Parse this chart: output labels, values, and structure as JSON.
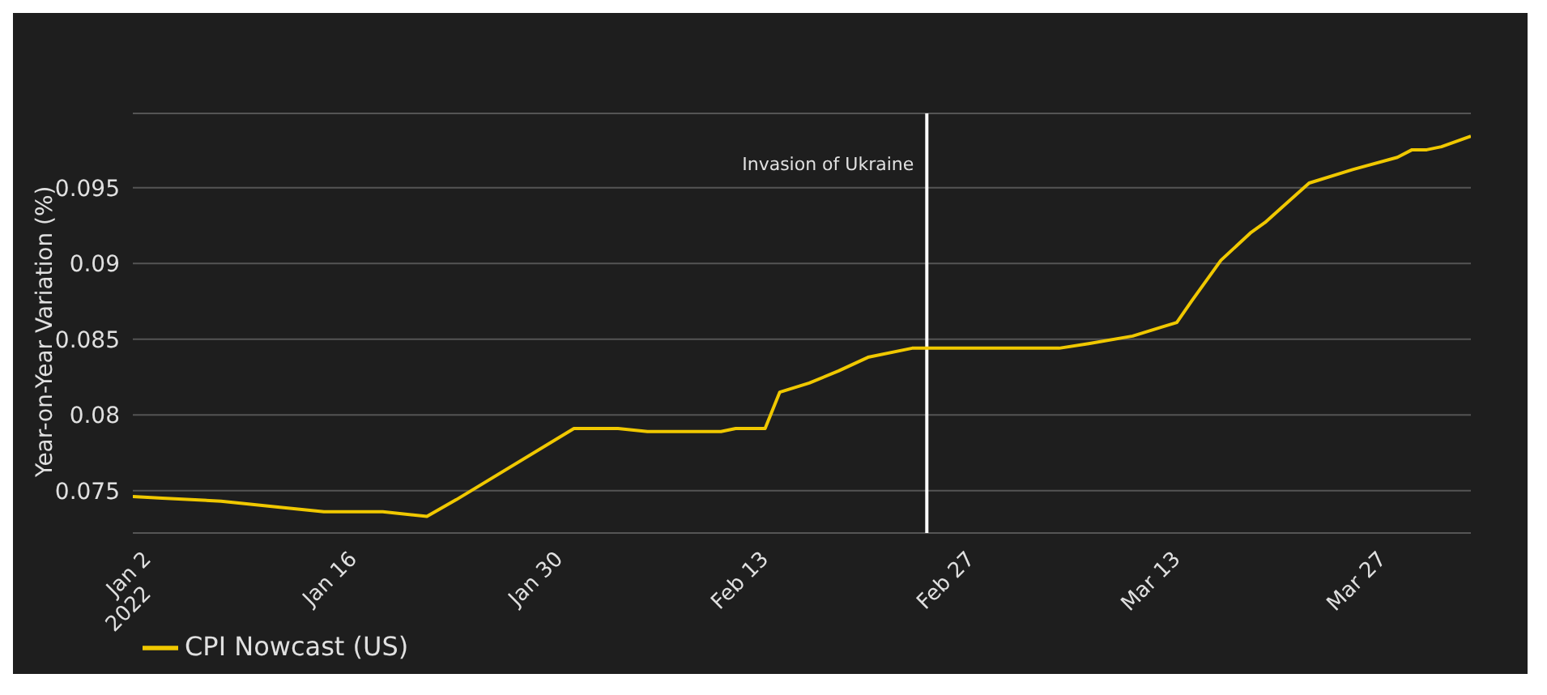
{
  "chart_data": {
    "type": "line",
    "ylabel": "Year-on-Year Variation (%)",
    "x": [
      "2022-01-01",
      "2022-01-03",
      "2022-01-07",
      "2022-01-11",
      "2022-01-14",
      "2022-01-18",
      "2022-01-21",
      "2022-01-23",
      "2022-01-31",
      "2022-02-03",
      "2022-02-05",
      "2022-02-10",
      "2022-02-11",
      "2022-02-13",
      "2022-02-14",
      "2022-02-16",
      "2022-02-18",
      "2022-02-20",
      "2022-02-23",
      "2022-03-05",
      "2022-03-07",
      "2022-03-10",
      "2022-03-12",
      "2022-03-13",
      "2022-03-14",
      "2022-03-16",
      "2022-03-18",
      "2022-03-19",
      "2022-03-22",
      "2022-03-25",
      "2022-03-28",
      "2022-03-29",
      "2022-03-30",
      "2022-03-31",
      "2022-04-02"
    ],
    "series": [
      {
        "name": "CPI Nowcast (US)",
        "color": "#f0c800",
        "values": [
          0.0746,
          0.0745,
          0.0743,
          0.0739,
          0.0736,
          0.0736,
          0.0733,
          0.0744,
          0.0791,
          0.0791,
          0.0789,
          0.0789,
          0.0791,
          0.0791,
          0.0815,
          0.0821,
          0.0829,
          0.0838,
          0.0844,
          0.0844,
          0.0847,
          0.0852,
          0.0858,
          0.0861,
          0.0875,
          0.0902,
          0.092,
          0.0927,
          0.0953,
          0.0962,
          0.097,
          0.0975,
          0.0975,
          0.0977,
          0.0984
        ]
      }
    ],
    "xlim": [
      "2022-01-01",
      "2022-04-02"
    ],
    "xticks": [
      {
        "value": "2022-01-02",
        "label": "Jan 2\n2022"
      },
      {
        "value": "2022-01-16",
        "label": "Jan 16"
      },
      {
        "value": "2022-01-30",
        "label": "Jan 30"
      },
      {
        "value": "2022-02-13",
        "label": "Feb 13"
      },
      {
        "value": "2022-02-27",
        "label": "Feb 27"
      },
      {
        "value": "2022-03-13",
        "label": "Mar 13"
      },
      {
        "value": "2022-03-27",
        "label": "Mar 27"
      }
    ],
    "ylim": [
      0.0722,
      0.0999
    ],
    "yticks": [
      0.075,
      0.08,
      0.085,
      0.09,
      0.095
    ],
    "ref_lines": [
      {
        "axis": "x",
        "value": "2022-02-24",
        "label": "Invasion of Ukraine",
        "color": "#ffffff"
      }
    ],
    "grid": "y",
    "legend": "bottom left",
    "marker": "none",
    "line_style": "solid"
  }
}
